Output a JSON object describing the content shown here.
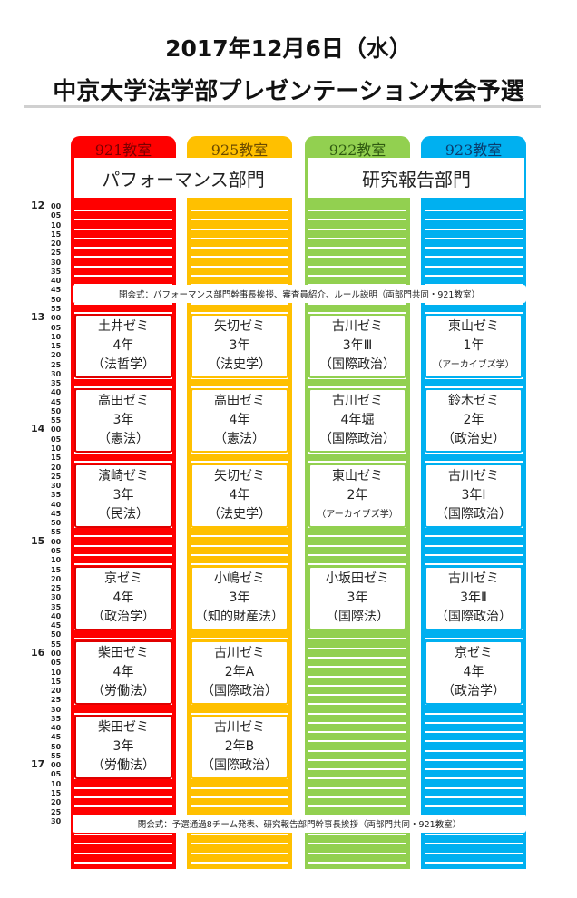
{
  "header": {
    "date": "2017年12月6日（水）",
    "title": "中京大学法学部プレゼンテーション大会予選"
  },
  "rooms": [
    {
      "name": "921教室",
      "color": "#ff0000",
      "label_color": "#ff0000"
    },
    {
      "name": "925教室",
      "color": "#ffc000",
      "label_color": "#ffc000"
    },
    {
      "name": "922教室",
      "color": "#92d050",
      "label_color": "#92d050"
    },
    {
      "name": "923教室",
      "color": "#00b0f0",
      "label_color": "#00b0f0"
    }
  ],
  "departments": {
    "performance": "パフォーマンス部門",
    "research": "研究報告部門"
  },
  "hours": [
    "12",
    "13",
    "14",
    "15",
    "16",
    "17"
  ],
  "minutes": [
    "00",
    "05",
    "10",
    "15",
    "20",
    "25",
    "30",
    "35",
    "40",
    "45",
    "50",
    "55"
  ],
  "ceremonies": {
    "opening": "開会式：パフォーマンス部門幹事長挨拶、審査員紹介、ルール説明（両部門共同・921教室）",
    "closing": "閉会式：予選通過8チーム発表、研究報告部門幹事長挨拶（両部門共同・921教室）"
  },
  "sessions": {
    "room921": [
      {
        "name": "土井ゼミ",
        "year": "4年",
        "topic": "（法哲学）"
      },
      {
        "name": "高田ゼミ",
        "year": "3年",
        "topic": "（憲法）"
      },
      {
        "name": "濱崎ゼミ",
        "year": "3年",
        "topic": "（民法）"
      },
      {
        "name": "京ゼミ",
        "year": "4年",
        "topic": "（政治学）"
      },
      {
        "name": "柴田ゼミ",
        "year": "4年",
        "topic": "（労働法）"
      },
      {
        "name": "柴田ゼミ",
        "year": "3年",
        "topic": "（労働法）"
      }
    ],
    "room925": [
      {
        "name": "矢切ゼミ",
        "year": "3年",
        "topic": "（法史学）"
      },
      {
        "name": "高田ゼミ",
        "year": "4年",
        "topic": "（憲法）"
      },
      {
        "name": "矢切ゼミ",
        "year": "4年",
        "topic": "（法史学）"
      },
      {
        "name": "小嶋ゼミ",
        "year": "3年",
        "topic": "（知的財産法）"
      },
      {
        "name": "古川ゼミ",
        "year": "2年A",
        "topic": "（国際政治）"
      },
      {
        "name": "古川ゼミ",
        "year": "2年B",
        "topic": "（国際政治）"
      }
    ],
    "room922": [
      {
        "name": "古川ゼミ",
        "year": "3年Ⅲ",
        "topic": "（国際政治）"
      },
      {
        "name": "古川ゼミ",
        "year": "4年堀",
        "topic": "（国際政治）"
      },
      {
        "name": "東山ゼミ",
        "year": "2年",
        "topic": "（アーカイブズ学）"
      },
      {
        "name": "小坂田ゼミ",
        "year": "3年",
        "topic": "（国際法）"
      }
    ],
    "room923": [
      {
        "name": "東山ゼミ",
        "year": "1年",
        "topic": "（アーカイブズ学）"
      },
      {
        "name": "鈴木ゼミ",
        "year": "2年",
        "topic": "（政治史）"
      },
      {
        "name": "古川ゼミ",
        "year": "3年Ⅰ",
        "topic": "（国際政治）"
      },
      {
        "name": "古川ゼミ",
        "year": "3年Ⅱ",
        "topic": "（国際政治）"
      },
      {
        "name": "京ゼミ",
        "year": "4年",
        "topic": "（政治学）"
      }
    ]
  }
}
